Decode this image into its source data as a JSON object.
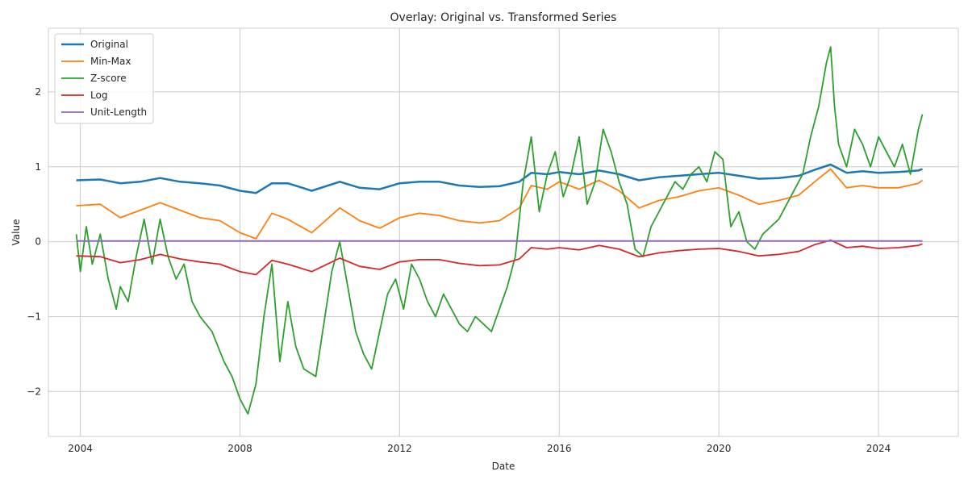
{
  "chart_data": {
    "type": "line",
    "title": "Overlay: Original vs. Transformed Series",
    "xlabel": "Date",
    "ylabel": "Value",
    "xlim": [
      2003.2,
      2026.0
    ],
    "ylim": [
      -2.6,
      2.85
    ],
    "grid": true,
    "legend_position": "top-left",
    "x_ticks": [
      2004,
      2008,
      2012,
      2016,
      2020,
      2024
    ],
    "x_tick_labels": [
      "2004",
      "2008",
      "2012",
      "2016",
      "2020",
      "2024"
    ],
    "y_ticks": [
      -2,
      -1,
      0,
      1,
      2
    ],
    "y_tick_labels": [
      "−2",
      "−1",
      "0",
      "1",
      "2"
    ],
    "series": [
      {
        "name": "Original",
        "color": "#1f77b4",
        "width": 2.5,
        "x": [
          2003.9,
          2004.5,
          2005.0,
          2005.5,
          2006.0,
          2006.5,
          2007.0,
          2007.5,
          2008.0,
          2008.4,
          2008.8,
          2009.2,
          2009.8,
          2010.5,
          2011.0,
          2011.5,
          2012.0,
          2012.5,
          2013.0,
          2013.5,
          2014.0,
          2014.5,
          2015.0,
          2015.3,
          2015.7,
          2016.0,
          2016.5,
          2017.0,
          2017.5,
          2018.0,
          2018.5,
          2019.0,
          2019.5,
          2020.0,
          2020.5,
          2021.0,
          2021.5,
          2022.0,
          2022.4,
          2022.8,
          2023.2,
          2023.6,
          2024.0,
          2024.5,
          2025.0,
          2025.1
        ],
        "y": [
          0.82,
          0.83,
          0.78,
          0.8,
          0.85,
          0.8,
          0.78,
          0.75,
          0.68,
          0.65,
          0.78,
          0.78,
          0.68,
          0.8,
          0.72,
          0.7,
          0.78,
          0.8,
          0.8,
          0.75,
          0.73,
          0.74,
          0.8,
          0.92,
          0.9,
          0.93,
          0.9,
          0.95,
          0.9,
          0.82,
          0.86,
          0.88,
          0.9,
          0.92,
          0.88,
          0.84,
          0.85,
          0.88,
          0.96,
          1.03,
          0.92,
          0.94,
          0.92,
          0.93,
          0.95,
          0.97
        ]
      },
      {
        "name": "Min-Max",
        "color": "#ff7f0e",
        "width": 1.8,
        "x": [
          2003.9,
          2004.5,
          2005.0,
          2005.5,
          2006.0,
          2006.5,
          2007.0,
          2007.5,
          2008.0,
          2008.4,
          2008.8,
          2009.2,
          2009.8,
          2010.5,
          2011.0,
          2011.5,
          2012.0,
          2012.5,
          2013.0,
          2013.5,
          2014.0,
          2014.5,
          2015.0,
          2015.3,
          2015.7,
          2016.0,
          2016.5,
          2017.0,
          2017.5,
          2018.0,
          2018.5,
          2019.0,
          2019.5,
          2020.0,
          2020.5,
          2021.0,
          2021.5,
          2022.0,
          2022.4,
          2022.8,
          2023.2,
          2023.6,
          2024.0,
          2024.5,
          2025.0,
          2025.1
        ],
        "y": [
          0.48,
          0.5,
          0.32,
          0.42,
          0.52,
          0.42,
          0.32,
          0.28,
          0.12,
          0.04,
          0.38,
          0.3,
          0.12,
          0.45,
          0.28,
          0.18,
          0.32,
          0.38,
          0.35,
          0.28,
          0.25,
          0.28,
          0.45,
          0.75,
          0.7,
          0.8,
          0.7,
          0.82,
          0.68,
          0.45,
          0.55,
          0.6,
          0.68,
          0.72,
          0.62,
          0.5,
          0.55,
          0.62,
          0.8,
          0.97,
          0.72,
          0.75,
          0.72,
          0.72,
          0.78,
          0.82
        ]
      },
      {
        "name": "Z-score",
        "color": "#2ca02c",
        "width": 1.8,
        "x": [
          2003.9,
          2004.0,
          2004.15,
          2004.3,
          2004.5,
          2004.7,
          2004.9,
          2005.0,
          2005.2,
          2005.4,
          2005.6,
          2005.8,
          2006.0,
          2006.2,
          2006.4,
          2006.6,
          2006.8,
          2007.0,
          2007.3,
          2007.6,
          2007.8,
          2008.0,
          2008.2,
          2008.4,
          2008.6,
          2008.8,
          2009.0,
          2009.2,
          2009.4,
          2009.6,
          2009.9,
          2010.1,
          2010.3,
          2010.5,
          2010.7,
          2010.9,
          2011.1,
          2011.3,
          2011.5,
          2011.7,
          2011.9,
          2012.1,
          2012.3,
          2012.5,
          2012.7,
          2012.9,
          2013.1,
          2013.3,
          2013.5,
          2013.7,
          2013.9,
          2014.1,
          2014.3,
          2014.5,
          2014.7,
          2014.9,
          2015.1,
          2015.3,
          2015.5,
          2015.7,
          2015.9,
          2016.1,
          2016.3,
          2016.5,
          2016.7,
          2016.9,
          2017.1,
          2017.3,
          2017.5,
          2017.7,
          2017.9,
          2018.1,
          2018.3,
          2018.5,
          2018.7,
          2018.9,
          2019.1,
          2019.3,
          2019.5,
          2019.7,
          2019.9,
          2020.1,
          2020.3,
          2020.5,
          2020.7,
          2020.9,
          2021.1,
          2021.3,
          2021.5,
          2021.7,
          2021.9,
          2022.1,
          2022.3,
          2022.5,
          2022.7,
          2022.8,
          2022.9,
          2023.0,
          2023.2,
          2023.4,
          2023.6,
          2023.8,
          2024.0,
          2024.2,
          2024.4,
          2024.6,
          2024.8,
          2025.0,
          2025.1
        ],
        "y": [
          0.1,
          -0.4,
          0.2,
          -0.3,
          0.1,
          -0.5,
          -0.9,
          -0.6,
          -0.8,
          -0.2,
          0.3,
          -0.3,
          0.3,
          -0.2,
          -0.5,
          -0.3,
          -0.8,
          -1.0,
          -1.2,
          -1.6,
          -1.8,
          -2.1,
          -2.3,
          -1.9,
          -1.0,
          -0.3,
          -1.6,
          -0.8,
          -1.4,
          -1.7,
          -1.8,
          -1.1,
          -0.4,
          0.0,
          -0.6,
          -1.2,
          -1.5,
          -1.7,
          -1.2,
          -0.7,
          -0.5,
          -0.9,
          -0.3,
          -0.5,
          -0.8,
          -1.0,
          -0.7,
          -0.9,
          -1.1,
          -1.2,
          -1.0,
          -1.1,
          -1.2,
          -0.9,
          -0.6,
          -0.2,
          0.8,
          1.4,
          0.4,
          0.9,
          1.2,
          0.6,
          0.9,
          1.4,
          0.5,
          0.8,
          1.5,
          1.2,
          0.8,
          0.5,
          -0.1,
          -0.2,
          0.2,
          0.4,
          0.6,
          0.8,
          0.7,
          0.9,
          1.0,
          0.8,
          1.2,
          1.1,
          0.2,
          0.4,
          0.0,
          -0.1,
          0.1,
          0.2,
          0.3,
          0.5,
          0.7,
          0.9,
          1.4,
          1.8,
          2.4,
          2.6,
          1.8,
          1.3,
          1.0,
          1.5,
          1.3,
          1.0,
          1.4,
          1.2,
          1.0,
          1.3,
          0.9,
          1.5,
          1.7
        ]
      },
      {
        "name": "Log",
        "color": "#d62728",
        "width": 1.8,
        "x": [
          2003.9,
          2004.5,
          2005.0,
          2005.5,
          2006.0,
          2006.5,
          2007.0,
          2007.5,
          2008.0,
          2008.4,
          2008.8,
          2009.2,
          2009.8,
          2010.5,
          2011.0,
          2011.5,
          2012.0,
          2012.5,
          2013.0,
          2013.5,
          2014.0,
          2014.5,
          2015.0,
          2015.3,
          2015.7,
          2016.0,
          2016.5,
          2017.0,
          2017.5,
          2018.0,
          2018.5,
          2019.0,
          2019.5,
          2020.0,
          2020.5,
          2021.0,
          2021.5,
          2022.0,
          2022.4,
          2022.8,
          2023.2,
          2023.6,
          2024.0,
          2024.5,
          2025.0,
          2025.1
        ],
        "y": [
          -0.19,
          -0.2,
          -0.28,
          -0.24,
          -0.17,
          -0.23,
          -0.27,
          -0.3,
          -0.4,
          -0.44,
          -0.25,
          -0.3,
          -0.4,
          -0.22,
          -0.33,
          -0.37,
          -0.27,
          -0.24,
          -0.24,
          -0.29,
          -0.32,
          -0.31,
          -0.23,
          -0.08,
          -0.1,
          -0.08,
          -0.11,
          -0.05,
          -0.1,
          -0.2,
          -0.15,
          -0.12,
          -0.1,
          -0.09,
          -0.13,
          -0.19,
          -0.17,
          -0.13,
          -0.04,
          0.02,
          -0.08,
          -0.06,
          -0.09,
          -0.08,
          -0.05,
          -0.03
        ]
      },
      {
        "name": "Unit-Length",
        "color": "#9467bd",
        "width": 1.8,
        "x": [
          2003.9,
          2025.1
        ],
        "y": [
          0.01,
          0.01
        ]
      }
    ]
  }
}
